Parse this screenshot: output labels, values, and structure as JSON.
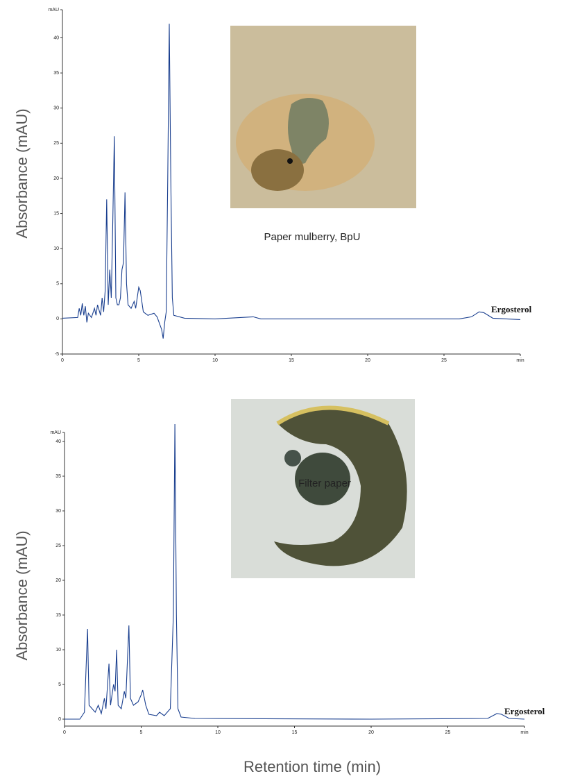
{
  "chart_data": [
    {
      "type": "line",
      "y_label": "Absorbance (mAU)",
      "caption": "Paper mulberry, BpU",
      "annotation": "Ergosterol",
      "x": [
        0,
        1,
        1.1,
        1.2,
        1.3,
        1.4,
        1.5,
        1.6,
        1.7,
        1.9,
        2.1,
        2.2,
        2.3,
        2.5,
        2.6,
        2.7,
        2.8,
        2.9,
        3.0,
        3.1,
        3.2,
        3.3,
        3.4,
        3.5,
        3.6,
        3.7,
        3.8,
        3.9,
        4.0,
        4.1,
        4.2,
        4.3,
        4.5,
        4.7,
        4.8,
        5.0,
        5.1,
        5.3,
        5.6,
        6.0,
        6.2,
        6.5,
        6.6,
        6.7,
        6.8,
        6.9,
        7.0,
        7.1,
        7.2,
        7.3,
        8,
        10,
        12.5,
        13,
        20,
        26,
        26.8,
        27.3,
        27.6,
        28.2,
        30
      ],
      "series": [
        {
          "color": "#1a3f8f",
          "values": [
            0.1,
            0.2,
            1.5,
            0.5,
            2.2,
            0.5,
            1.8,
            -0.5,
            0.8,
            0.2,
            1.5,
            0.5,
            2.0,
            0.5,
            3,
            1,
            4,
            17,
            2,
            7,
            3,
            14,
            26,
            3,
            2,
            2,
            3,
            7,
            8,
            18,
            5,
            2,
            1.5,
            2.5,
            1.5,
            4.5,
            4,
            1,
            0.5,
            0.8,
            0.3,
            -1.5,
            -2.8,
            -0.5,
            1,
            20,
            42,
            20,
            3,
            0.5,
            0.1,
            0,
            0.3,
            0,
            0,
            0,
            0.3,
            1.0,
            0.9,
            0.1,
            -0.1
          ]
        }
      ],
      "xlim": [
        0,
        30
      ],
      "xticks": [
        0,
        5,
        10,
        15,
        20,
        25,
        {
          "value": 30,
          "label": "min"
        }
      ],
      "ylim": [
        -5,
        44
      ],
      "yticks": [
        -5,
        0,
        5,
        10,
        15,
        20,
        25,
        30,
        35,
        40,
        {
          "value": 44,
          "label": "mAU"
        }
      ]
    },
    {
      "type": "line",
      "y_label": "Absorbance (mAU)",
      "x_label": "Retention time (min)",
      "caption": "Filter paper",
      "annotation": "Ergosterol",
      "x": [
        0,
        1,
        1.3,
        1.5,
        1.6,
        1.8,
        2,
        2.2,
        2.4,
        2.6,
        2.7,
        2.9,
        3.0,
        3.2,
        3.3,
        3.4,
        3.5,
        3.7,
        3.9,
        4.0,
        4.2,
        4.3,
        4.5,
        4.8,
        5.0,
        5.1,
        5.3,
        5.5,
        6,
        6.2,
        6.5,
        6.9,
        7.1,
        7.2,
        7.3,
        7.4,
        7.6,
        8.5,
        20,
        27.6,
        28.2,
        28.5,
        29,
        30
      ],
      "series": [
        {
          "color": "#1a3f8f",
          "values": [
            0,
            0,
            1,
            13,
            2,
            1.5,
            1,
            2,
            0.8,
            3,
            1.5,
            8,
            2,
            5,
            4,
            10,
            2,
            1.5,
            4,
            3,
            13.5,
            3,
            2,
            2.5,
            3.5,
            4.2,
            2,
            0.7,
            0.5,
            1.0,
            0.5,
            1.5,
            15,
            42.5,
            15,
            1.5,
            0.3,
            0.1,
            0,
            0.1,
            0.8,
            0.7,
            0.1,
            0
          ]
        }
      ],
      "xlim": [
        0,
        30
      ],
      "xticks": [
        0,
        5,
        10,
        15,
        20,
        25,
        {
          "value": 30,
          "label": "min"
        }
      ],
      "ylim": [
        -1,
        41.3
      ],
      "yticks": [
        0,
        5,
        10,
        15,
        20,
        25,
        30,
        35,
        40,
        {
          "value": 41.3,
          "label": "mAU"
        }
      ]
    }
  ]
}
